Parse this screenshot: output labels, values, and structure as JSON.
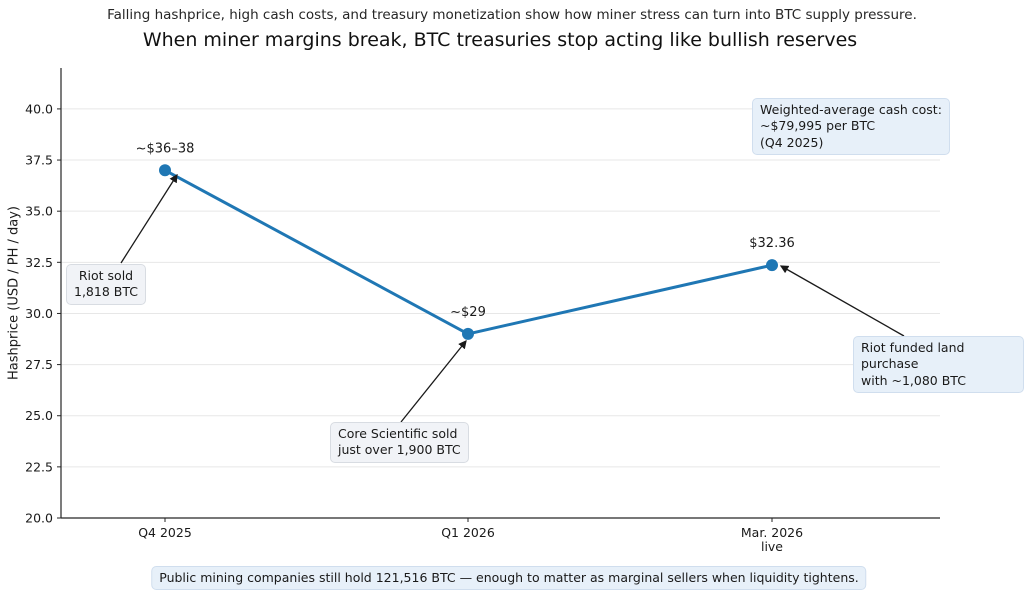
{
  "chart_data": {
    "type": "line",
    "title": "When miner margins break, BTC treasuries stop acting like bullish reserves",
    "subtitle": "Falling hashprice, high cash costs, and treasury monetization show how miner stress can turn into BTC supply pressure.",
    "xlabel": "",
    "ylabel": "Hashprice (USD / PH / day)",
    "categories": [
      "Q4 2025",
      "Q1 2026",
      "Mar. 2026"
    ],
    "x_sublabels": [
      "",
      "",
      "live"
    ],
    "values": [
      37.0,
      29.0,
      32.36
    ],
    "point_labels": [
      "~$36–38",
      "~$29",
      "$32.36"
    ],
    "yticks": [
      "20.0",
      "22.5",
      "25.0",
      "27.5",
      "30.0",
      "32.5",
      "35.0",
      "37.5",
      "40.0"
    ],
    "ylim": [
      20,
      42
    ],
    "grid": true,
    "legend": "none",
    "line_color": "#1f77b4",
    "marker": "circle",
    "annotations": {
      "riot_sold": "Riot sold\n1,818 BTC",
      "core_scientific": "Core Scientific sold\njust over 1,900 BTC",
      "riot_land": "Riot funded land purchase\nwith ~1,080 BTC",
      "cash_cost": "Weighted-average cash cost:\n~$79,995 per BTC\n(Q4 2025)"
    }
  },
  "footer": {
    "note": "Public mining companies still hold 121,516 BTC — enough to matter as marginal sellers when liquidity tightens."
  }
}
